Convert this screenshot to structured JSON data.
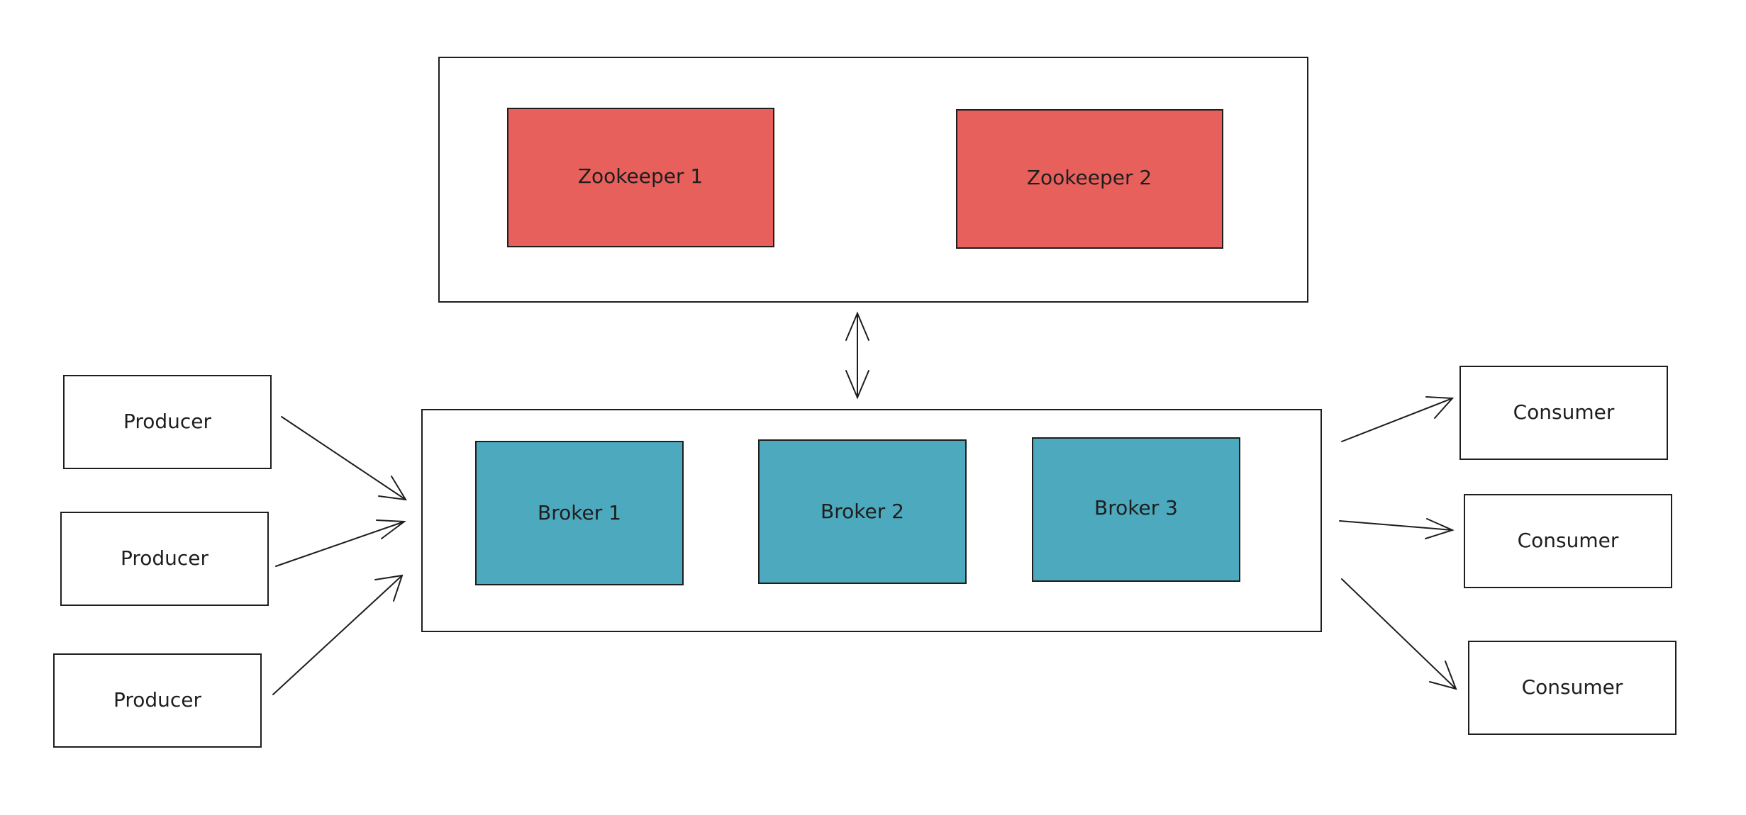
{
  "colors": {
    "stroke": "#1e1e1e",
    "background": "#ffffff",
    "zookeeper_fill": "#e8605c",
    "broker_fill": "#4da9bd"
  },
  "zookeeper_cluster": {
    "nodes": [
      {
        "label": "Zookeeper 1"
      },
      {
        "label": "Zookeeper 2"
      }
    ]
  },
  "broker_cluster": {
    "nodes": [
      {
        "label": "Broker 1"
      },
      {
        "label": "Broker 2"
      },
      {
        "label": "Broker 3"
      }
    ]
  },
  "producers": [
    {
      "label": "Producer"
    },
    {
      "label": "Producer"
    },
    {
      "label": "Producer"
    }
  ],
  "consumers": [
    {
      "label": "Consumer"
    },
    {
      "label": "Consumer"
    },
    {
      "label": "Consumer"
    }
  ]
}
